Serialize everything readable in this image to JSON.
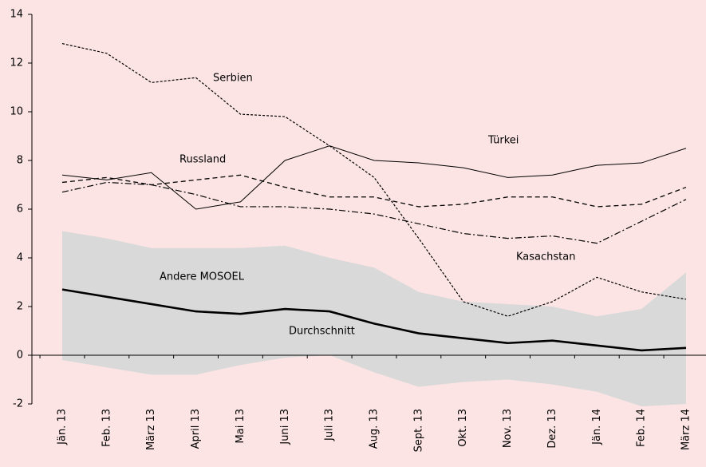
{
  "chart_data": {
    "type": "line",
    "categories": [
      "Jän. 13",
      "Feb. 13",
      "März 13",
      "April 13",
      "Mai 13",
      "Juni 13",
      "Juli 13",
      "Aug. 13",
      "Sept. 13",
      "Okt. 13",
      "Nov. 13",
      "Dez. 13",
      "Jän. 14",
      "Feb. 14",
      "März 14"
    ],
    "ylim": [
      -2,
      14
    ],
    "yticks": [
      -2,
      0,
      2,
      4,
      6,
      8,
      10,
      12,
      14
    ],
    "band": {
      "name": "Andere MOSOEL",
      "color": "#d9d9d9",
      "upper": [
        5.1,
        4.8,
        4.4,
        4.4,
        4.4,
        4.5,
        4.0,
        3.6,
        2.6,
        2.2,
        2.1,
        2.0,
        1.6,
        1.9,
        3.4
      ],
      "lower": [
        -0.2,
        -0.5,
        -0.8,
        -0.8,
        -0.4,
        -0.1,
        0.0,
        -0.7,
        -1.3,
        -1.1,
        -1.0,
        -1.2,
        -1.5,
        -2.1,
        -2.0
      ]
    },
    "series": [
      {
        "name": "Serbien",
        "color": "#000000",
        "dash": "3,2",
        "width": 1.2,
        "values": [
          12.8,
          12.4,
          11.2,
          11.4,
          9.9,
          9.8,
          8.6,
          7.3,
          4.8,
          2.2,
          1.6,
          2.2,
          3.2,
          2.6,
          2.3
        ]
      },
      {
        "name": "Türkei",
        "color": "#000000",
        "dash": "none",
        "width": 1,
        "values": [
          7.4,
          7.2,
          7.5,
          6.0,
          6.3,
          8.0,
          8.6,
          8.0,
          7.9,
          7.7,
          7.3,
          7.4,
          7.8,
          7.9,
          8.5
        ]
      },
      {
        "name": "Russland",
        "color": "#000000",
        "dash": "6,4",
        "width": 1.3,
        "values": [
          7.1,
          7.3,
          7.0,
          7.2,
          7.4,
          6.9,
          6.5,
          6.5,
          6.1,
          6.2,
          6.5,
          6.5,
          6.1,
          6.2,
          6.9
        ]
      },
      {
        "name": "Kasachstan",
        "color": "#000000",
        "dash": "8,3,2,3",
        "width": 1.2,
        "values": [
          6.7,
          7.1,
          7.0,
          6.6,
          6.1,
          6.1,
          6.0,
          5.8,
          5.4,
          5.0,
          4.8,
          4.9,
          4.6,
          5.5,
          6.4
        ]
      },
      {
        "name": "Durchschnitt",
        "color": "#000000",
        "dash": "none",
        "width": 2.6,
        "values": [
          2.7,
          2.4,
          2.1,
          1.8,
          1.7,
          1.9,
          1.8,
          1.3,
          0.9,
          0.7,
          0.5,
          0.6,
          0.4,
          0.2,
          0.3
        ]
      }
    ]
  }
}
